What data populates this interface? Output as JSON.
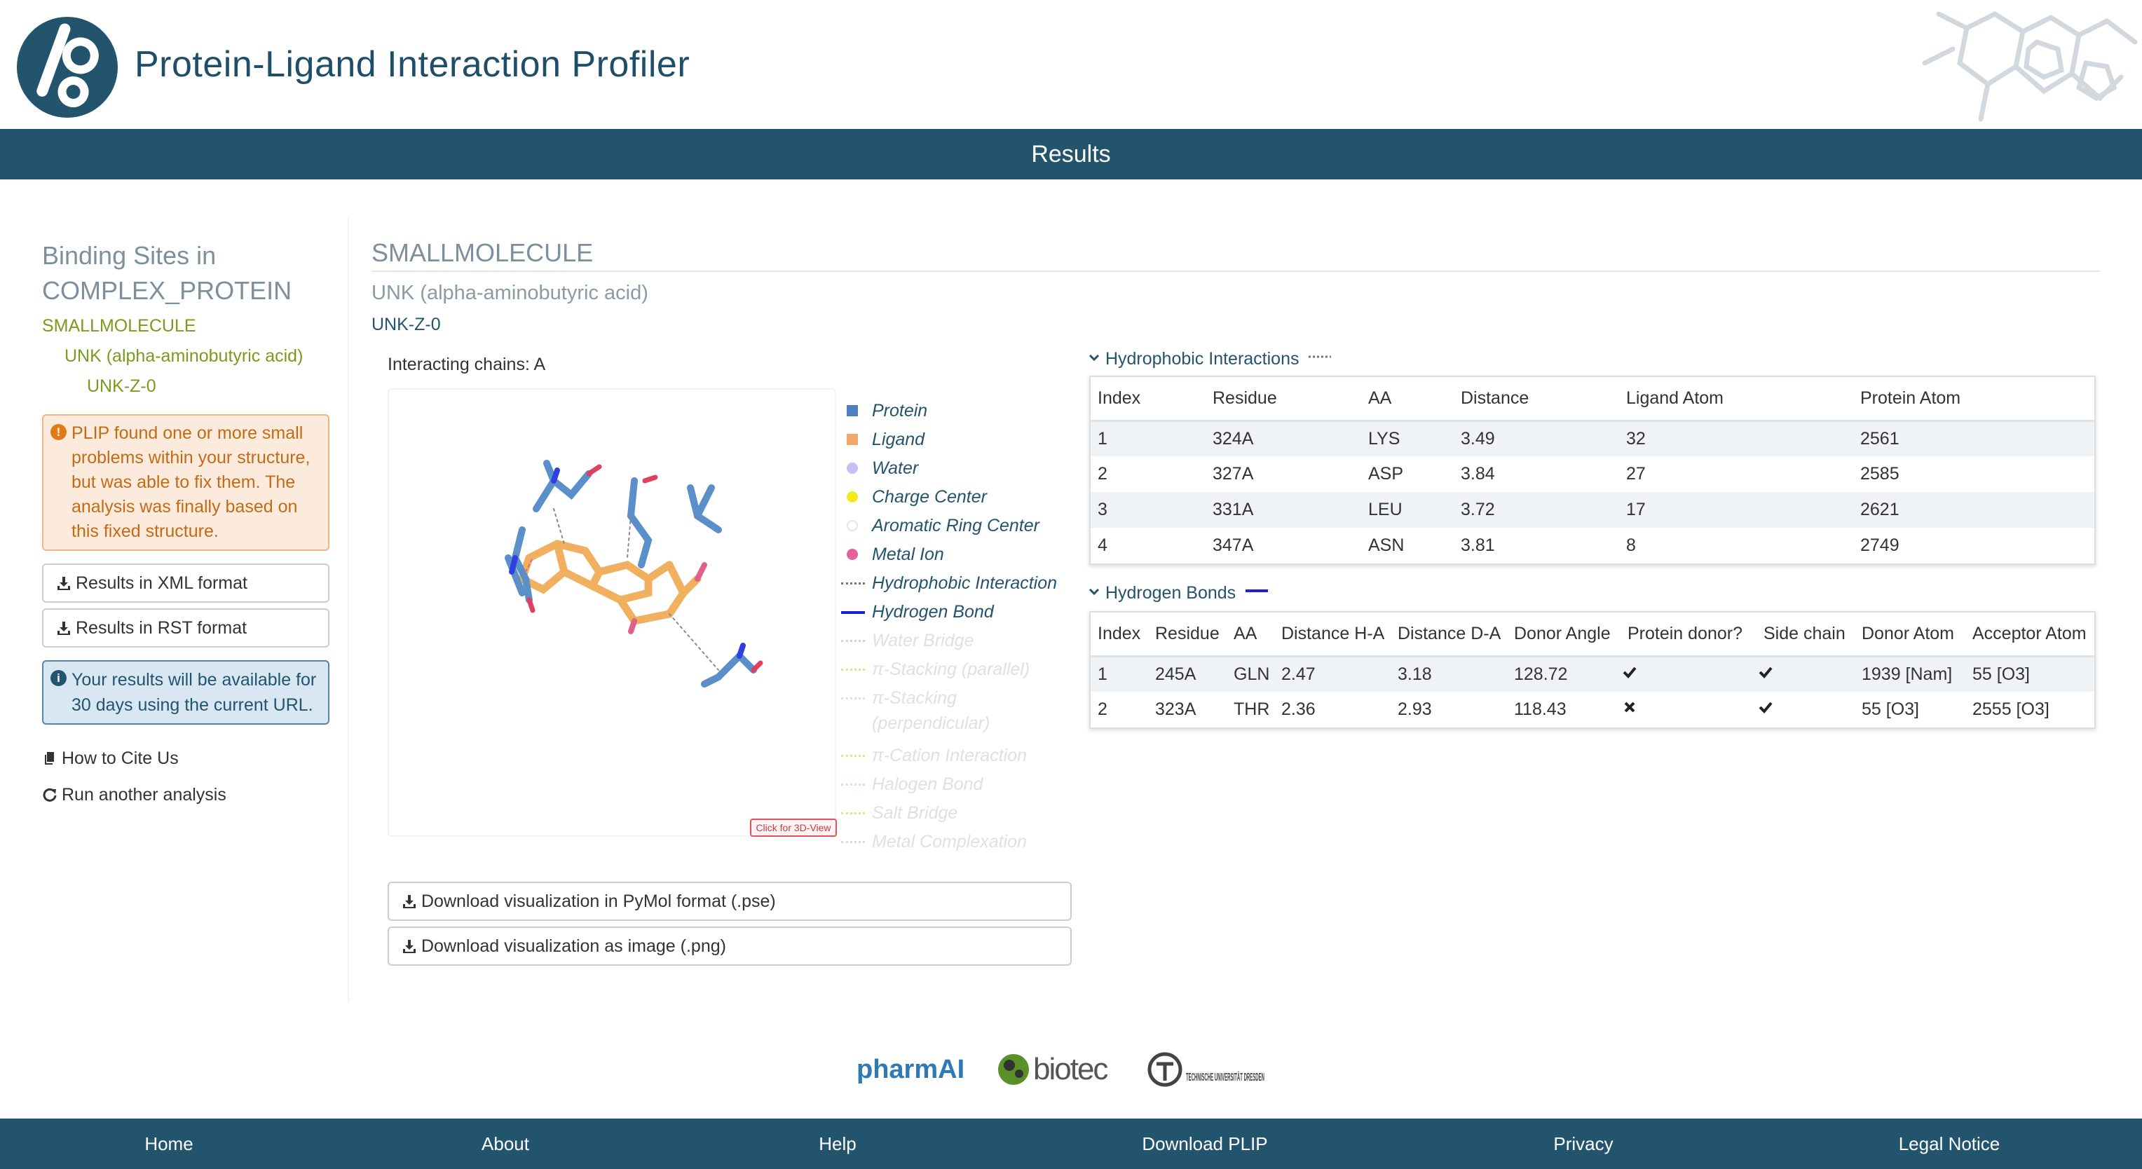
{
  "header": {
    "title": "Protein-Ligand Interaction Profiler",
    "results_label": "Results"
  },
  "sidebar": {
    "title_line1": "Binding Sites in",
    "title_line2": "COMPLEX_PROTEIN",
    "tree": [
      {
        "label": "SMALLMOLECULE",
        "level": 0
      },
      {
        "label": "UNK (alpha-aminobutyric acid)",
        "level": 1
      },
      {
        "label": "UNK-Z-0",
        "level": 2
      }
    ],
    "warning": "PLIP found one or more small problems within your structure, but was able to fix them. The analysis was finally based on this fixed structure.",
    "xml_button": "Results in XML format",
    "rst_button": "Results in RST format",
    "info": "Your results will be available for 30 days using the current URL.",
    "cite_link": "How to Cite Us",
    "run_link": "Run another analysis"
  },
  "main": {
    "molecule_title": "SMALLMOLECULE",
    "ligand_name": "UNK (alpha-aminobutyric acid)",
    "site_id": "UNK-Z-0",
    "chains": "Interacting chains: A",
    "click_3d": "Click for 3D-View",
    "download_pse": "Download visualization in PyMol format (.pse)",
    "download_png": "Download visualization as image (.png)"
  },
  "legend": [
    {
      "label": "Protein",
      "kind": "square",
      "color": "#4f7fbf",
      "faded": false
    },
    {
      "label": "Ligand",
      "kind": "square",
      "color": "#f0a868",
      "faded": false
    },
    {
      "label": "Water",
      "kind": "circle",
      "color": "#c6c0f0",
      "faded": false
    },
    {
      "label": "Charge Center",
      "kind": "circle",
      "color": "#f2ea1a",
      "faded": false
    },
    {
      "label": "Aromatic Ring Center",
      "kind": "circle-outline",
      "color": "#e6e6e6",
      "faded": false
    },
    {
      "label": "Metal Ion",
      "kind": "circle",
      "color": "#e8609a",
      "faded": false
    },
    {
      "label": "Hydrophobic Interaction",
      "kind": "dotted",
      "color": "#777777",
      "faded": false
    },
    {
      "label": "Hydrogen Bond",
      "kind": "solid",
      "color": "#1f1fd6",
      "faded": false
    },
    {
      "label": "Water Bridge",
      "kind": "dotted",
      "color": "#c9d0f5",
      "faded": true
    },
    {
      "label": "π-Stacking (parallel)",
      "kind": "dotted",
      "color": "#e9e08a",
      "faded": true
    },
    {
      "label": "π-Stacking (perpendicular)",
      "kind": "dotted",
      "color": "#e0e0e0",
      "faded": true
    },
    {
      "label": "π-Cation Interaction",
      "kind": "dotted",
      "color": "#e9e08a",
      "faded": true
    },
    {
      "label": "Halogen Bond",
      "kind": "dotted",
      "color": "#cfe9d0",
      "faded": true
    },
    {
      "label": "Salt Bridge",
      "kind": "dotted",
      "color": "#e9e08a",
      "faded": true
    },
    {
      "label": "Metal Complexation",
      "kind": "dotted",
      "color": "#d9d9d9",
      "faded": true
    }
  ],
  "hydrophobic": {
    "title": "Hydrophobic Interactions",
    "headers": [
      "Index",
      "Residue",
      "AA",
      "Distance",
      "Ligand Atom",
      "Protein Atom"
    ],
    "rows": [
      [
        "1",
        "324A",
        "LYS",
        "3.49",
        "32",
        "2561"
      ],
      [
        "2",
        "327A",
        "ASP",
        "3.84",
        "27",
        "2585"
      ],
      [
        "3",
        "331A",
        "LEU",
        "3.72",
        "17",
        "2621"
      ],
      [
        "4",
        "347A",
        "ASN",
        "3.81",
        "8",
        "2749"
      ]
    ]
  },
  "hbonds": {
    "title": "Hydrogen Bonds",
    "headers": [
      "Index",
      "Residue",
      "AA",
      "Distance H-A",
      "Distance D-A",
      "Donor Angle",
      "Protein donor?",
      "Side chain",
      "Donor Atom",
      "Acceptor Atom"
    ],
    "rows": [
      [
        "1",
        "245A",
        "GLN",
        "2.47",
        "3.18",
        "128.72",
        "check",
        "check",
        "1939 [Nam]",
        "55 [O3]"
      ],
      [
        "2",
        "323A",
        "THR",
        "2.36",
        "2.93",
        "118.43",
        "cross",
        "check",
        "55 [O3]",
        "2555 [O3]"
      ]
    ]
  },
  "footer": {
    "logos": [
      "pharmAI",
      "biotec",
      "TECHNISCHE UNIVERSITÄT DRESDEN"
    ],
    "nav": [
      "Home",
      "About",
      "Help",
      "Download PLIP",
      "Privacy",
      "Legal Notice"
    ]
  }
}
